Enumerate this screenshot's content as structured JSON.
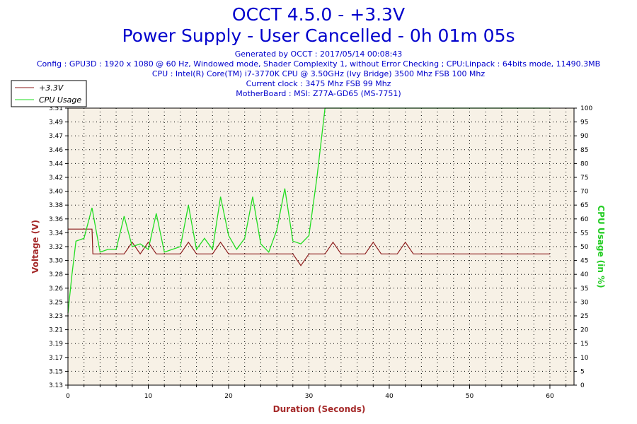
{
  "header": {
    "title_line1": "OCCT 4.5.0 - +3.3V",
    "title_line2": "Power Supply - User Cancelled - 0h 01m 05s",
    "info": [
      "Generated by OCCT : 2017/05/14 00:08:43",
      "Config : GPU3D : 1920 x 1080 @ 60 Hz, Windowed mode, Shader Complexity 1, without Error Checking ; CPU:Linpack : 64bits mode, 11490.3MB",
      "CPU : Intel(R) Core(TM) i7-3770K CPU @ 3.50GHz (Ivy Bridge) 3500 Mhz FSB 100 Mhz",
      "Current clock : 3475 Mhz FSB 99 Mhz",
      "MotherBoard : MSI: Z77A-GD65 (MS-7751)"
    ]
  },
  "colors": {
    "title": "#0000cc",
    "voltage_line": "#8b1a1a",
    "cpu_line": "#22dd22",
    "plot_bg": "#f7f1e6",
    "axis_label_left": "#a52a2a",
    "axis_label_right": "#22cc22",
    "axis_label_bottom": "#a52a2a"
  },
  "chart_data": {
    "type": "line",
    "xlabel": "Duration (Seconds)",
    "ylabel": "Voltage (V)",
    "y2label": "CPU Usage (in %)",
    "xlim": [
      0,
      63
    ],
    "ylim": [
      3.13,
      3.51
    ],
    "y2lim": [
      0,
      100
    ],
    "xticks": [
      0,
      10,
      20,
      30,
      40,
      50,
      60
    ],
    "yticks": [
      "3.13",
      "3.15",
      "3.17",
      "3.19",
      "3.21",
      "3.23",
      "3.25",
      "3.26",
      "3.28",
      "3.30",
      "3.32",
      "3.34",
      "3.36",
      "3.38",
      "3.40",
      "3.42",
      "3.44",
      "3.46",
      "3.47",
      "3.49",
      "3.51"
    ],
    "y2ticks": [
      0,
      5,
      10,
      15,
      20,
      25,
      30,
      35,
      40,
      45,
      50,
      55,
      60,
      65,
      70,
      75,
      80,
      85,
      90,
      95,
      100
    ],
    "grid": true,
    "legend_position": "top-left",
    "series": [
      {
        "name": "+3.3V",
        "axis": "left",
        "x": [
          0,
          1,
          2,
          3,
          3.1,
          5,
          6,
          7,
          8,
          9,
          10,
          11,
          12,
          13,
          14,
          15,
          16,
          17,
          18,
          19,
          20,
          21,
          22,
          23,
          24,
          25,
          26,
          27,
          28,
          29,
          30,
          31,
          32,
          33,
          34,
          35,
          36,
          37,
          38,
          39,
          40,
          41,
          42,
          43,
          44,
          45,
          60
        ],
        "y": [
          3.344,
          3.344,
          3.344,
          3.344,
          3.31,
          3.31,
          3.31,
          3.31,
          3.326,
          3.31,
          3.326,
          3.31,
          3.31,
          3.31,
          3.31,
          3.326,
          3.31,
          3.31,
          3.31,
          3.326,
          3.31,
          3.31,
          3.31,
          3.31,
          3.31,
          3.31,
          3.31,
          3.31,
          3.31,
          3.294,
          3.31,
          3.31,
          3.31,
          3.326,
          3.31,
          3.31,
          3.31,
          3.31,
          3.326,
          3.31,
          3.31,
          3.31,
          3.326,
          3.31,
          3.31,
          3.31,
          3.31
        ]
      },
      {
        "name": "CPU Usage",
        "axis": "right",
        "x": [
          0,
          0.5,
          1,
          2,
          3,
          4,
          5,
          6,
          7,
          8,
          9,
          10,
          11,
          12,
          13,
          14,
          15,
          16,
          17,
          18,
          19,
          20,
          21,
          22,
          23,
          24,
          25,
          26,
          27,
          28,
          29,
          30,
          31,
          32,
          33,
          40,
          50,
          60
        ],
        "y": [
          26,
          40,
          52,
          53,
          64,
          48,
          49,
          49,
          61,
          50,
          51,
          49,
          62,
          48,
          49,
          50,
          65,
          49,
          53,
          49,
          68,
          54,
          49,
          53,
          68,
          51,
          48,
          56,
          71,
          52,
          51,
          54,
          75,
          100,
          100,
          100,
          100,
          100
        ]
      }
    ]
  }
}
